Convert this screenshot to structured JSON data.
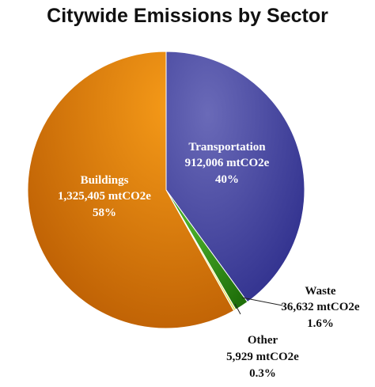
{
  "chart_data": {
    "type": "pie",
    "title": "Citywide Emissions by Sector",
    "slices": [
      {
        "name": "Transportation",
        "value": 912006,
        "value_label": "912,006 mtCO2e",
        "percent_label": "40%",
        "color": "#3b3b9e"
      },
      {
        "name": "Waste",
        "value": 36632,
        "value_label": "36,632 mtCO2e",
        "percent_label": "1.6%",
        "color": "#2e8c10"
      },
      {
        "name": "Other",
        "value": 5929,
        "value_label": "5,929 mtCO2e",
        "percent_label": "0.3%",
        "color": "#f2ef7a"
      },
      {
        "name": "Buildings",
        "value": 1325405,
        "value_label": "1,325,405 mtCO2e",
        "percent_label": "58%",
        "color": "#e07d06"
      }
    ]
  }
}
